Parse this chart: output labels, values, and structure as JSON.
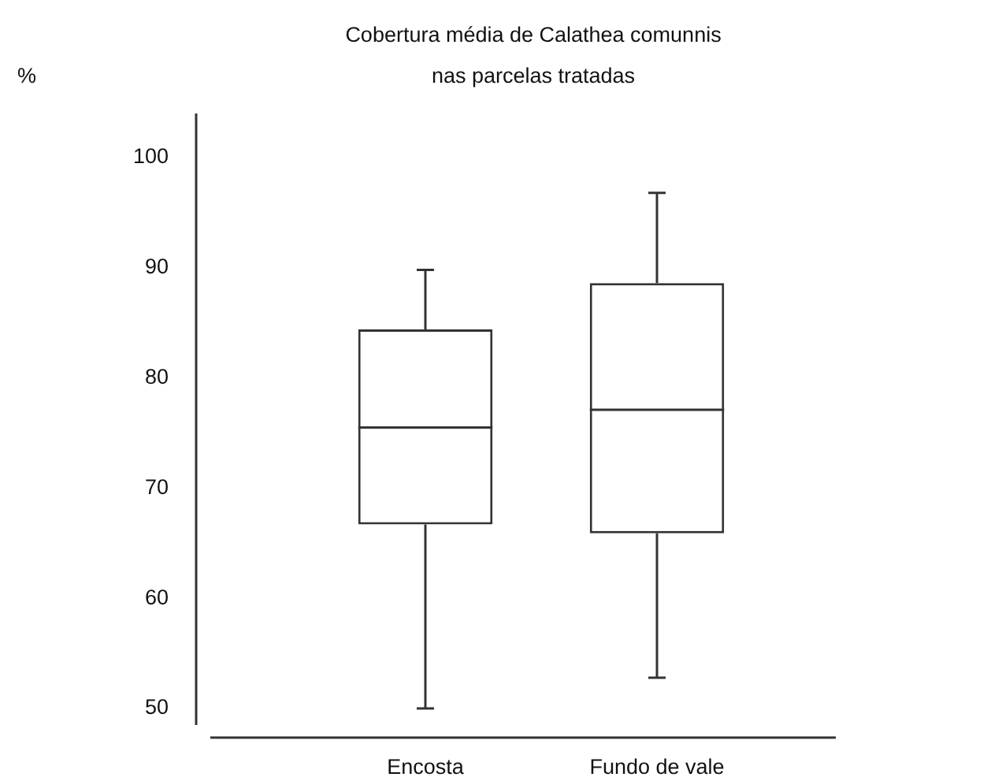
{
  "chart_data": {
    "type": "box",
    "title": "Cobertura média de Calathea comunnis",
    "subtitle": "nas parcelas tratadas",
    "annotations": [
      "%"
    ],
    "categories": [
      "Encosta",
      "Fundo de vale"
    ],
    "boxes": [
      {
        "low": 50,
        "q1": 66.7,
        "median": 75.5,
        "q3": 84.4,
        "high": 89.8
      },
      {
        "low": 52.8,
        "q1": 65.9,
        "median": 77.1,
        "q3": 88.6,
        "high": 96.8
      }
    ],
    "color": "#333333",
    "ylim": [
      48.5,
      104
    ],
    "yticks": [
      50,
      60,
      70,
      80,
      90,
      100
    ],
    "grid": false,
    "legend": false
  }
}
